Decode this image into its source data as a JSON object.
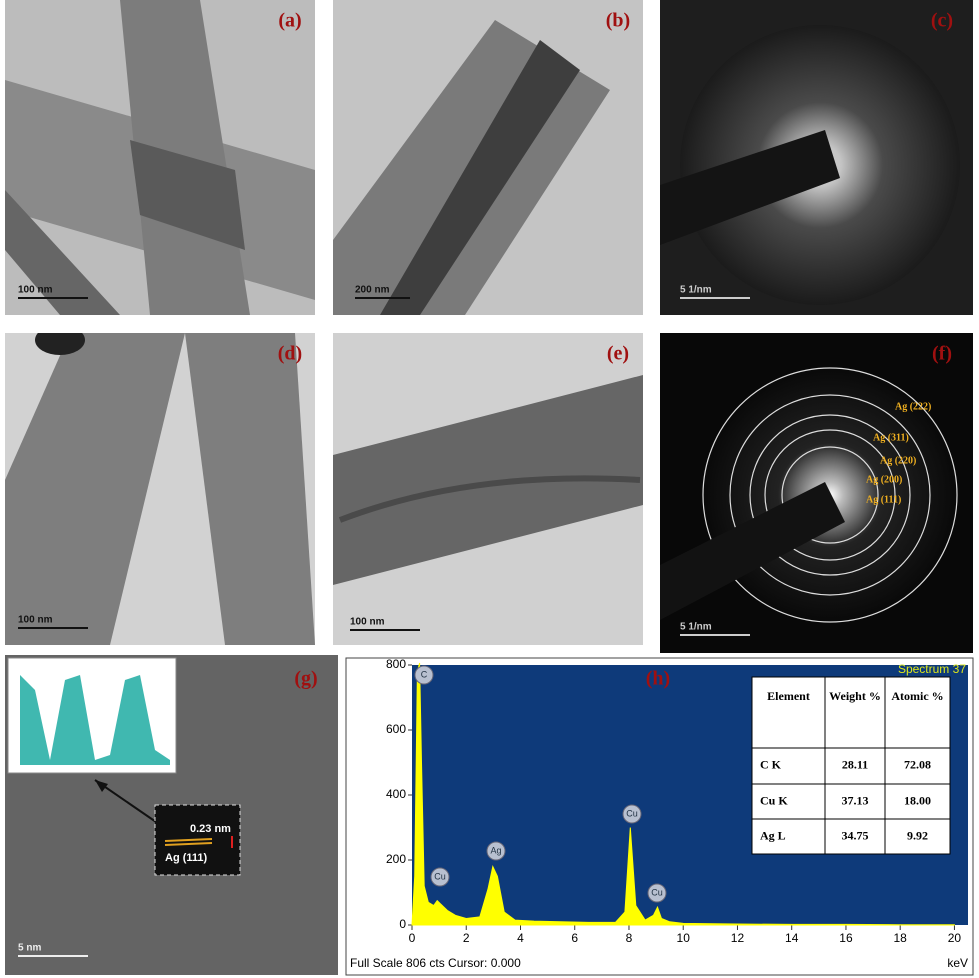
{
  "panels": [
    {
      "label": "(a)",
      "scale_bar": "100 nm"
    },
    {
      "label": "(b)",
      "scale_bar": "200 nm"
    },
    {
      "label": "(c)",
      "scale_bar": "5 1/nm"
    },
    {
      "label": "(d)",
      "scale_bar": "100 nm"
    },
    {
      "label": "(e)",
      "scale_bar": "100 nm"
    },
    {
      "label": "(f)",
      "scale_bar": "5 1/nm"
    },
    {
      "label": "(g)",
      "scale_bar": "5 nm"
    }
  ],
  "panel_f_rings": [
    "Ag (222)",
    "Ag (311)",
    "Ag (220)",
    "Ag (200)",
    "Ag (111)"
  ],
  "panel_g_inset": {
    "spacing": "0.23 nm",
    "plane": "Ag (111)"
  },
  "chart_data": {
    "type": "area",
    "label": "(h)",
    "title": "Spectrum 37",
    "x_label": "keV",
    "footer": "Full Scale 806 cts Cursor: 0.000",
    "color": "#ffff00",
    "background": "#0e3a7a",
    "x": [
      0,
      0.1,
      0.2,
      0.28,
      0.35,
      0.45,
      0.6,
      0.8,
      0.93,
      1.05,
      1.3,
      1.6,
      2.0,
      2.5,
      2.8,
      2.98,
      3.15,
      3.4,
      3.8,
      4.5,
      5.5,
      6.5,
      7.5,
      7.85,
      8.05,
      8.25,
      8.6,
      8.9,
      9.05,
      9.2,
      9.5,
      10,
      12,
      14,
      16,
      18,
      20
    ],
    "values": [
      0,
      150,
      780,
      806,
      500,
      120,
      70,
      60,
      75,
      65,
      45,
      30,
      20,
      25,
      110,
      180,
      150,
      40,
      15,
      12,
      10,
      8,
      8,
      40,
      300,
      60,
      15,
      30,
      55,
      20,
      10,
      5,
      3,
      2,
      2,
      1,
      1
    ],
    "xlim": [
      0,
      20.5
    ],
    "xticks": [
      0,
      2,
      4,
      6,
      8,
      10,
      12,
      14,
      16,
      18,
      20
    ],
    "ylim": [
      0,
      800
    ],
    "yticks": [
      0,
      200,
      400,
      600,
      800
    ],
    "peak_labels": [
      "C",
      "Cu",
      "Ag",
      "Cu",
      "Cu"
    ],
    "table": {
      "header": [
        "Element",
        "Weight %",
        "Atomic %"
      ],
      "rows": [
        [
          "C K",
          "28.11",
          "72.08"
        ],
        [
          "Cu K",
          "37.13",
          "18.00"
        ],
        [
          "Ag L",
          "34.75",
          "9.92"
        ]
      ]
    }
  }
}
